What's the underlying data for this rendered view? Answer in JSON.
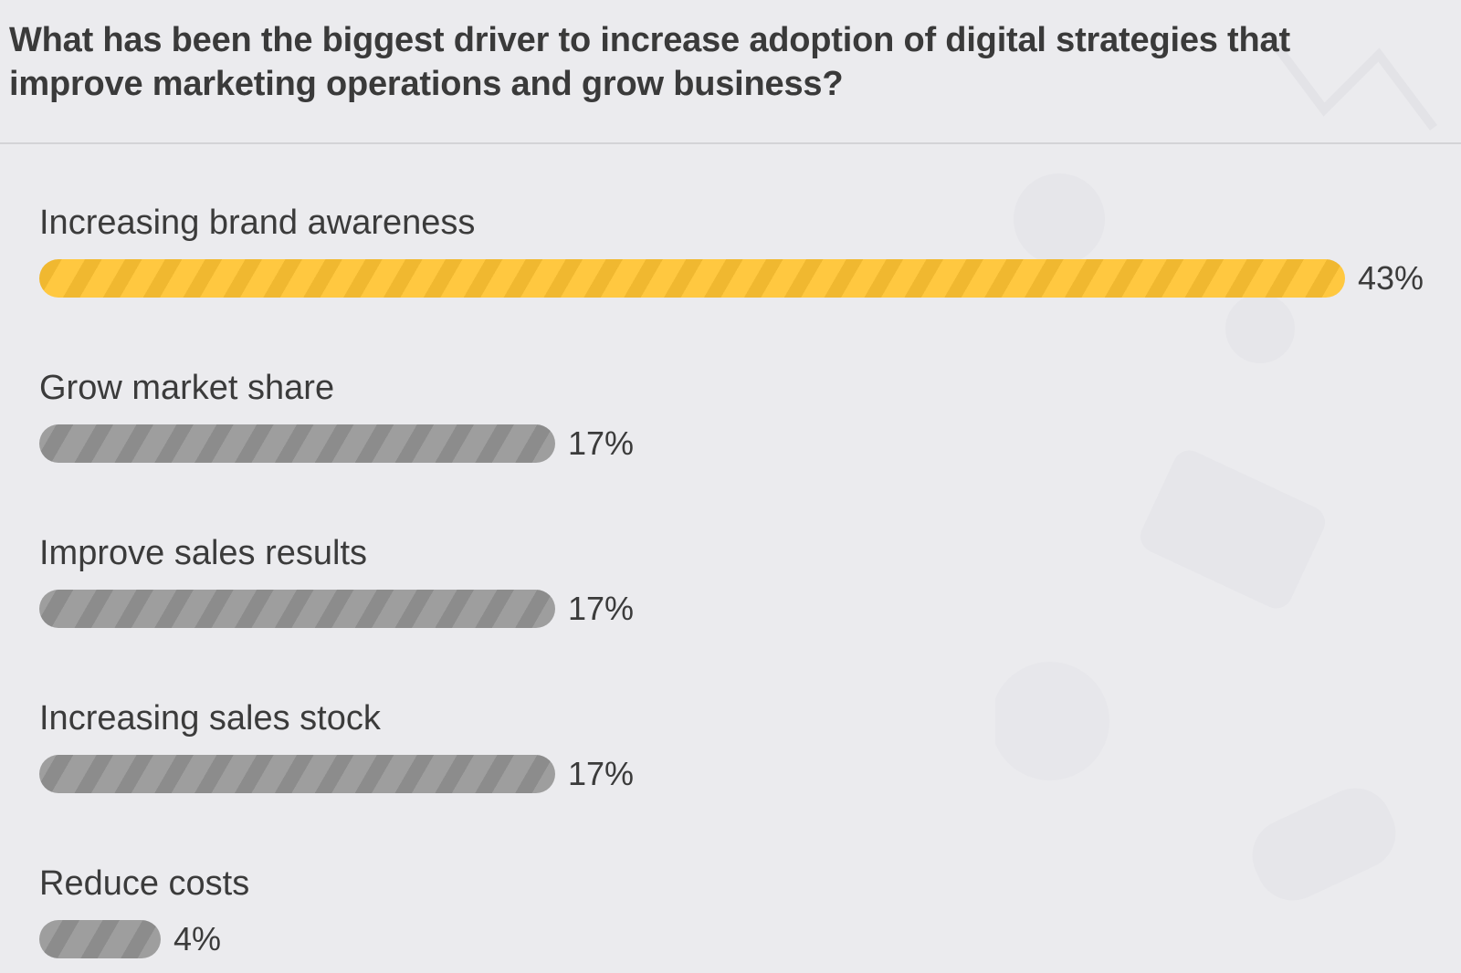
{
  "title": "What has been the biggest driver to increase adoption of digital strategies that improve marketing operations and grow business?",
  "colors": {
    "highlight": "#ffc840",
    "default": "#9e9e9e",
    "background": "#ebebee",
    "text": "#3a3a3a"
  },
  "chart_data": {
    "type": "bar",
    "orientation": "horizontal",
    "title": "What has been the biggest driver to increase adoption of digital strategies that improve marketing operations and grow business?",
    "categories": [
      "Increasing brand awareness",
      "Grow market share",
      "Improve sales results",
      "Increasing sales stock",
      "Reduce costs"
    ],
    "values": [
      43,
      17,
      17,
      17,
      4
    ],
    "value_labels": [
      "43%",
      "17%",
      "17%",
      "17%",
      "4%"
    ],
    "unit": "%",
    "highlight_index": 0,
    "xlim": [
      0,
      43
    ]
  }
}
